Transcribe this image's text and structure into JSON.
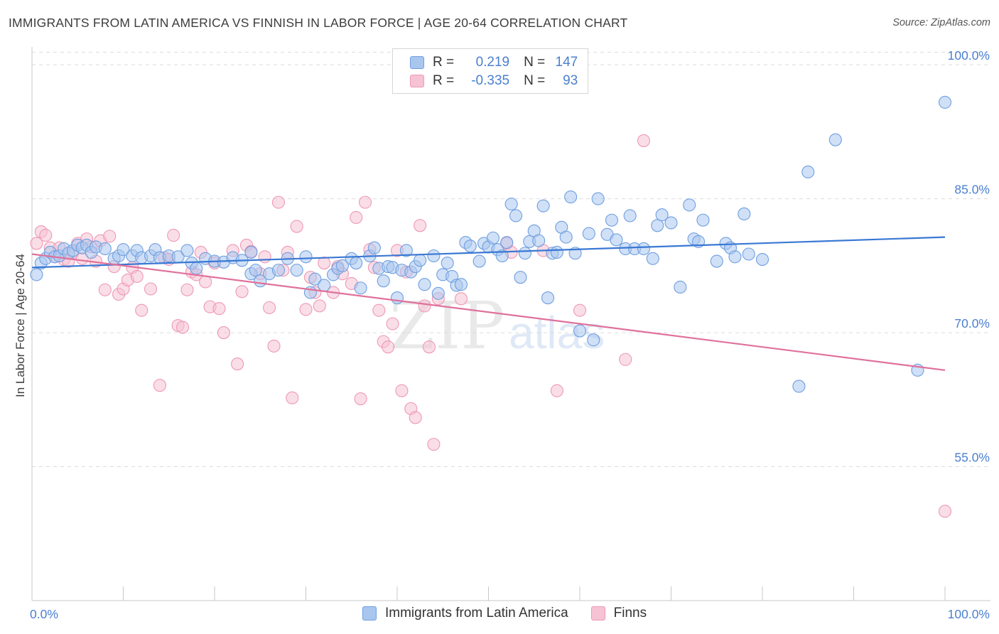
{
  "header": {
    "title": "IMMIGRANTS FROM LATIN AMERICA VS FINNISH IN LABOR FORCE | AGE 20-64 CORRELATION CHART",
    "source": "Source: ZipAtlas.com"
  },
  "legend": {
    "series1": {
      "r_label": "R =",
      "r_value": "0.219",
      "n_label": "N =",
      "n_value": "147"
    },
    "series2": {
      "r_label": "R =",
      "r_value": "-0.335",
      "n_label": "N =",
      "n_value": "93"
    }
  },
  "bottom_legend": {
    "series1_label": "Immigrants from Latin America",
    "series2_label": "Finns"
  },
  "watermark": {
    "part1": "ZIP",
    "part2": "atlas"
  },
  "colors": {
    "blue_fill": "#a9c6ef",
    "blue_stroke": "#6f9fe0",
    "blue_line": "#3a78d4",
    "pink_fill": "#f6c3d4",
    "pink_stroke": "#ee98b5",
    "pink_line": "#e0709b",
    "tick_text": "#4a7fd0",
    "grid": "#dcdcdc"
  },
  "chart_data": {
    "type": "scatter",
    "title": "IMMIGRANTS FROM LATIN AMERICA VS FINNISH IN LABOR FORCE | AGE 20-64 CORRELATION CHART",
    "xlabel": "",
    "ylabel": "In Labor Force | Age 20-64",
    "xlim": [
      0,
      100
    ],
    "ylim": [
      40,
      102
    ],
    "x_tick_labels": [
      "0.0%",
      "100.0%"
    ],
    "y_ticks": [
      55,
      70,
      85,
      100
    ],
    "y_tick_labels": [
      "55.0%",
      "70.0%",
      "85.0%",
      "100.0%"
    ],
    "grid": true,
    "legend_placement": "top-center",
    "series": [
      {
        "name": "Immigrants from Latin America",
        "color": "#a9c6ef",
        "trend": [
          [
            0,
            77.3
          ],
          [
            100,
            80.7
          ]
        ],
        "points": [
          [
            0.5,
            76.5
          ],
          [
            1,
            77.8
          ],
          [
            1.5,
            78.3
          ],
          [
            2,
            79.0
          ],
          [
            2.5,
            78.5
          ],
          [
            3,
            78.6
          ],
          [
            3.5,
            79.4
          ],
          [
            4,
            78.9
          ],
          [
            4.5,
            79.2
          ],
          [
            5,
            79.8
          ],
          [
            5.5,
            79.5
          ],
          [
            6,
            79.8
          ],
          [
            6.5,
            79.0
          ],
          [
            7,
            79.6
          ],
          [
            8,
            79.4
          ],
          [
            9,
            78.3
          ],
          [
            9.5,
            78.6
          ],
          [
            10,
            79.3
          ],
          [
            11,
            78.6
          ],
          [
            11.5,
            79.2
          ],
          [
            12,
            78.4
          ],
          [
            13,
            78.6
          ],
          [
            13.5,
            79.3
          ],
          [
            14,
            78.4
          ],
          [
            15,
            78.6
          ],
          [
            16,
            78.5
          ],
          [
            17,
            79.2
          ],
          [
            17.5,
            77.8
          ],
          [
            18,
            77.2
          ],
          [
            19,
            78.3
          ],
          [
            20,
            78.0
          ],
          [
            21,
            77.9
          ],
          [
            22,
            78.4
          ],
          [
            23,
            78.1
          ],
          [
            24,
            79.0
          ],
          [
            24,
            76.6
          ],
          [
            24.5,
            77.0
          ],
          [
            25,
            75.8
          ],
          [
            26,
            76.6
          ],
          [
            27,
            77.0
          ],
          [
            28,
            78.3
          ],
          [
            29,
            77.0
          ],
          [
            30,
            78.5
          ],
          [
            30.5,
            74.5
          ],
          [
            31,
            76.0
          ],
          [
            32,
            75.3
          ],
          [
            33,
            76.5
          ],
          [
            33.5,
            77.2
          ],
          [
            34,
            77.5
          ],
          [
            35,
            78.3
          ],
          [
            35.5,
            77.8
          ],
          [
            36,
            75.0
          ],
          [
            37,
            78.6
          ],
          [
            37.5,
            79.5
          ],
          [
            38,
            77.2
          ],
          [
            38.5,
            75.8
          ],
          [
            39,
            77.4
          ],
          [
            39.5,
            77.3
          ],
          [
            40,
            73.9
          ],
          [
            40.5,
            77.0
          ],
          [
            41,
            79.2
          ],
          [
            41.5,
            76.8
          ],
          [
            42,
            77.4
          ],
          [
            42.5,
            78.1
          ],
          [
            43,
            75.4
          ],
          [
            44,
            78.6
          ],
          [
            44.5,
            74.4
          ],
          [
            45,
            76.5
          ],
          [
            45.5,
            77.8
          ],
          [
            46,
            76.3
          ],
          [
            46.5,
            75.3
          ],
          [
            47,
            75.4
          ],
          [
            47.5,
            80.1
          ],
          [
            48,
            79.7
          ],
          [
            49,
            78.0
          ],
          [
            49.5,
            80.0
          ],
          [
            50,
            79.6
          ],
          [
            50.5,
            80.6
          ],
          [
            51,
            79.3
          ],
          [
            51.5,
            78.6
          ],
          [
            52,
            80.1
          ],
          [
            52.5,
            84.4
          ],
          [
            53,
            83.1
          ],
          [
            53.5,
            76.2
          ],
          [
            54,
            78.9
          ],
          [
            54.5,
            80.2
          ],
          [
            55,
            81.4
          ],
          [
            55.5,
            80.3
          ],
          [
            56,
            84.2
          ],
          [
            56.5,
            73.9
          ],
          [
            57,
            78.9
          ],
          [
            57.5,
            79.0
          ],
          [
            58,
            81.8
          ],
          [
            58.5,
            80.7
          ],
          [
            59,
            85.2
          ],
          [
            59.5,
            78.9
          ],
          [
            60,
            70.2
          ],
          [
            61,
            81.1
          ],
          [
            61.5,
            69.2
          ],
          [
            62,
            85.0
          ],
          [
            63,
            81.0
          ],
          [
            63.5,
            82.6
          ],
          [
            64,
            80.4
          ],
          [
            65,
            79.4
          ],
          [
            65.5,
            83.1
          ],
          [
            66,
            79.4
          ],
          [
            67,
            79.4
          ],
          [
            68,
            78.3
          ],
          [
            68.5,
            82.0
          ],
          [
            69,
            83.2
          ],
          [
            70,
            82.3
          ],
          [
            71,
            75.1
          ],
          [
            72,
            84.3
          ],
          [
            72.5,
            80.5
          ],
          [
            73,
            80.2
          ],
          [
            73.5,
            82.6
          ],
          [
            75,
            78.0
          ],
          [
            76,
            80.0
          ],
          [
            76.5,
            79.5
          ],
          [
            77,
            78.5
          ],
          [
            78,
            83.3
          ],
          [
            78.5,
            78.8
          ],
          [
            80,
            78.2
          ],
          [
            84,
            64.0
          ],
          [
            85,
            88.0
          ],
          [
            88,
            91.6
          ],
          [
            97,
            65.8
          ],
          [
            100,
            95.8
          ]
        ]
      },
      {
        "name": "Finns",
        "color": "#f6c3d4",
        "trend": [
          [
            0,
            78.8
          ],
          [
            100,
            65.8
          ]
        ],
        "points": [
          [
            0.5,
            80.0
          ],
          [
            1,
            81.3
          ],
          [
            1.5,
            80.9
          ],
          [
            2,
            79.5
          ],
          [
            2.5,
            78.5
          ],
          [
            3,
            79.5
          ],
          [
            3.5,
            78.2
          ],
          [
            4,
            78.0
          ],
          [
            4.5,
            79.0
          ],
          [
            5,
            80.0
          ],
          [
            5.5,
            78.3
          ],
          [
            6,
            80.5
          ],
          [
            6.5,
            79.6
          ],
          [
            7,
            78.0
          ],
          [
            7.5,
            80.3
          ],
          [
            8,
            74.8
          ],
          [
            8.5,
            80.8
          ],
          [
            9,
            77.4
          ],
          [
            9.5,
            74.3
          ],
          [
            10,
            74.9
          ],
          [
            10.5,
            75.9
          ],
          [
            11,
            77.3
          ],
          [
            11.5,
            76.3
          ],
          [
            12,
            72.5
          ],
          [
            13,
            74.9
          ],
          [
            14,
            64.1
          ],
          [
            14.5,
            78.4
          ],
          [
            15,
            78.2
          ],
          [
            15.5,
            80.9
          ],
          [
            16,
            70.8
          ],
          [
            16.5,
            70.6
          ],
          [
            17,
            74.8
          ],
          [
            17.5,
            76.8
          ],
          [
            18,
            76.5
          ],
          [
            18.5,
            79.0
          ],
          [
            19,
            75.7
          ],
          [
            19.5,
            72.9
          ],
          [
            20,
            77.8
          ],
          [
            20.5,
            72.7
          ],
          [
            21,
            70.0
          ],
          [
            22,
            79.2
          ],
          [
            22.5,
            66.5
          ],
          [
            23,
            74.6
          ],
          [
            23.5,
            79.8
          ],
          [
            24,
            79.1
          ],
          [
            25,
            76.6
          ],
          [
            25.5,
            78.5
          ],
          [
            26,
            72.8
          ],
          [
            26.5,
            68.5
          ],
          [
            27,
            84.6
          ],
          [
            27.5,
            77.0
          ],
          [
            28,
            79.0
          ],
          [
            28.5,
            62.7
          ],
          [
            29,
            81.9
          ],
          [
            30,
            72.6
          ],
          [
            30.5,
            76.2
          ],
          [
            31,
            74.5
          ],
          [
            31.5,
            73.0
          ],
          [
            32,
            77.8
          ],
          [
            33,
            74.5
          ],
          [
            33.5,
            77.4
          ],
          [
            34,
            76.6
          ],
          [
            35,
            75.5
          ],
          [
            35.5,
            82.9
          ],
          [
            36,
            62.6
          ],
          [
            36.5,
            84.6
          ],
          [
            37,
            79.3
          ],
          [
            37.5,
            77.3
          ],
          [
            38,
            72.5
          ],
          [
            38.5,
            69.0
          ],
          [
            39,
            68.4
          ],
          [
            39.5,
            71.0
          ],
          [
            40,
            79.2
          ],
          [
            40.5,
            63.5
          ],
          [
            41,
            76.8
          ],
          [
            41.5,
            61.5
          ],
          [
            42,
            60.5
          ],
          [
            42.5,
            82.0
          ],
          [
            43,
            73.0
          ],
          [
            43.5,
            68.4
          ],
          [
            44,
            57.5
          ],
          [
            44.5,
            73.8
          ],
          [
            46,
            99.8
          ],
          [
            47,
            73.8
          ],
          [
            52,
            80.0
          ],
          [
            52.5,
            79.0
          ],
          [
            56,
            79.2
          ],
          [
            57.5,
            63.5
          ],
          [
            60,
            72.5
          ],
          [
            65,
            67.0
          ],
          [
            67,
            91.5
          ],
          [
            100,
            50.0
          ]
        ]
      }
    ]
  }
}
